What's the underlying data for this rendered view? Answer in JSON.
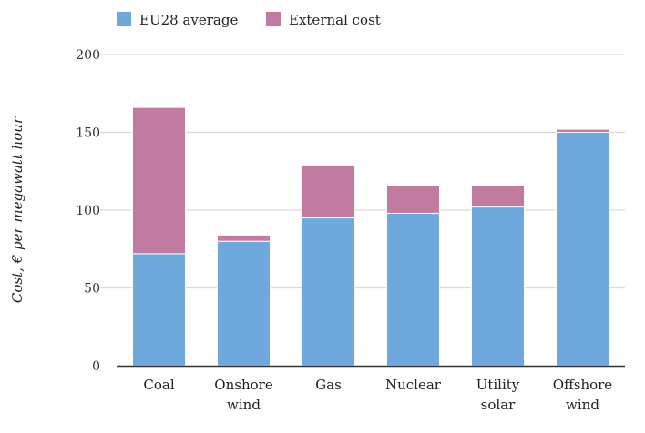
{
  "chart_data": {
    "type": "bar",
    "stacked": true,
    "title": "",
    "xlabel": "",
    "ylabel": "Cost, € per megawatt hour",
    "ylim": [
      0,
      200
    ],
    "yticks": [
      0,
      50,
      100,
      150,
      200
    ],
    "grid": true,
    "legend_position": "top-left",
    "categories": [
      [
        "Coal"
      ],
      [
        "Onshore",
        "wind"
      ],
      [
        "Gas"
      ],
      [
        "Nuclear"
      ],
      [
        "Utility",
        "solar"
      ],
      [
        "Offshore",
        "wind"
      ]
    ],
    "series": [
      {
        "name": "EU28 average",
        "color": "#6FA8DC",
        "values": [
          72,
          80,
          95,
          98,
          102,
          150
        ]
      },
      {
        "name": "External cost",
        "color": "#C27BA0",
        "values": [
          94,
          4,
          34,
          17.5,
          13.5,
          2
        ]
      }
    ]
  }
}
